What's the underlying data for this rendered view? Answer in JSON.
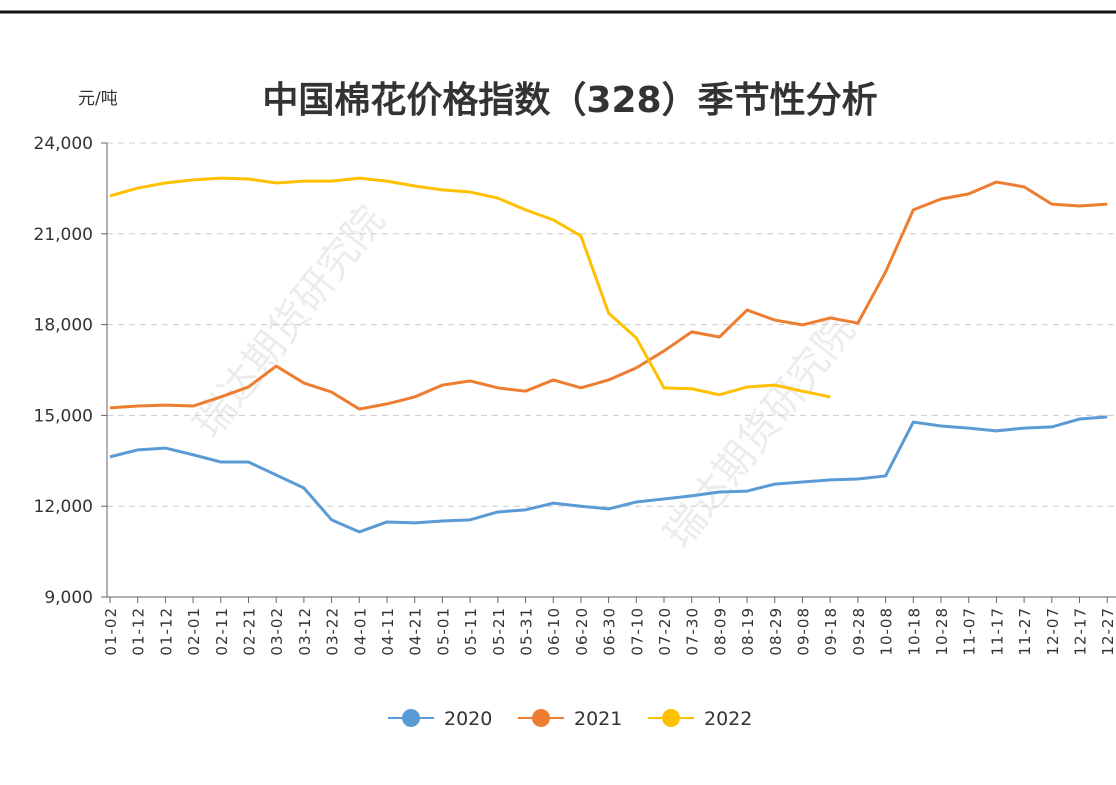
{
  "chart_data": {
    "type": "line",
    "title": "中国棉花价格指数（328）季节性分析",
    "y_label": "元/吨",
    "watermark": "瑞达期货研究院",
    "categories": [
      "01-02",
      "01-12",
      "01-12",
      "02-01",
      "02-11",
      "02-21",
      "03-02",
      "03-12",
      "03-22",
      "04-01",
      "04-11",
      "04-21",
      "05-01",
      "05-11",
      "05-21",
      "05-31",
      "06-10",
      "06-20",
      "06-30",
      "07-10",
      "07-20",
      "07-30",
      "08-09",
      "08-19",
      "08-29",
      "09-08",
      "09-18",
      "09-28",
      "10-08",
      "10-18",
      "10-28",
      "11-07",
      "11-17",
      "11-27",
      "12-07",
      "12-17",
      "12-27"
    ],
    "series": [
      {
        "name": "2020",
        "color": "#5b9bd5",
        "values": [
          13630,
          13860,
          13920,
          13700,
          13460,
          13460,
          13030,
          12600,
          11550,
          11150,
          11480,
          11450,
          11510,
          11550,
          11810,
          11880,
          12100,
          12000,
          11910,
          12140,
          12240,
          12340,
          12470,
          12500,
          12730,
          12800,
          12870,
          12900,
          13000,
          14780,
          14650,
          14580,
          14490,
          14580,
          14620,
          14880,
          14950
        ]
      },
      {
        "name": "2021",
        "color": "#ed7d31",
        "values": [
          15250,
          15310,
          15340,
          15310,
          15610,
          15940,
          16630,
          16070,
          15770,
          15210,
          15380,
          15610,
          16000,
          16140,
          15910,
          15800,
          16170,
          15910,
          16170,
          16570,
          17130,
          17760,
          17590,
          18480,
          18150,
          17990,
          18220,
          18050,
          19740,
          21790,
          22150,
          22320,
          22710,
          22550,
          21980,
          21920,
          21980
        ]
      },
      {
        "name": "2022",
        "color": "#ffc000",
        "values": [
          22250,
          22510,
          22680,
          22780,
          22840,
          22810,
          22680,
          22740,
          22740,
          22840,
          22740,
          22580,
          22450,
          22380,
          22180,
          21790,
          21460,
          20930,
          18380,
          17560,
          15910,
          15880,
          15680,
          15940,
          16000,
          15800,
          15610,
          null,
          null,
          null,
          null,
          null,
          null,
          null,
          null,
          null,
          null
        ]
      }
    ],
    "ylim": [
      9000,
      24000
    ],
    "yticks": [
      {
        "value": 9000,
        "label": "9,000"
      },
      {
        "value": 12000,
        "label": "12,000"
      },
      {
        "value": 15000,
        "label": "15,000"
      },
      {
        "value": 18000,
        "label": "18,000"
      },
      {
        "value": 21000,
        "label": "21,000"
      },
      {
        "value": 24000,
        "label": "24,000"
      }
    ],
    "grid": true,
    "legend": "bottom"
  }
}
